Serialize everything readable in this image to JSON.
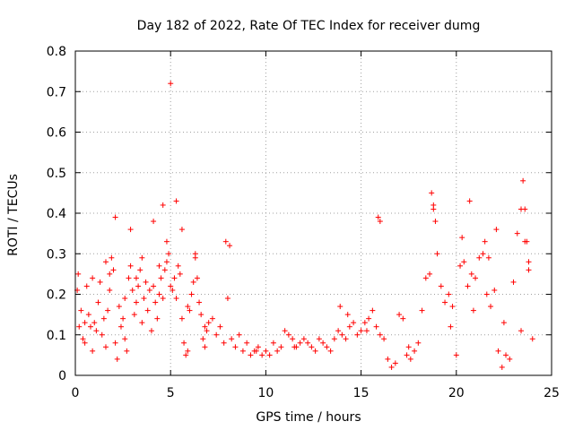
{
  "chart_data": {
    "type": "scatter",
    "title": "Day 182 of 2022, Rate Of TEC Index for receiver dumg",
    "xlabel": "GPS time / hours",
    "ylabel": "ROTI / TECUs",
    "xlim": [
      0,
      25
    ],
    "ylim": [
      0,
      0.8
    ],
    "x_ticks": [
      "0",
      "5",
      "10",
      "15",
      "20",
      "25"
    ],
    "y_ticks": [
      "0",
      "0.1",
      "0.2",
      "0.3",
      "0.4",
      "0.5",
      "0.6",
      "0.7",
      "0.8"
    ],
    "grid": true,
    "marker": "+",
    "color": "#ff0000",
    "series": [
      {
        "x": [
          0.1,
          0.2,
          0.3,
          0.4,
          0.5,
          0.6,
          0.7,
          0.8,
          0.9,
          1.0,
          1.1,
          1.2,
          1.3,
          1.4,
          1.5,
          1.6,
          1.7,
          1.8,
          1.9,
          2.0,
          2.1,
          2.2,
          2.3,
          2.4,
          2.5,
          2.6,
          2.7,
          2.8,
          2.9,
          3.0,
          3.1,
          3.2,
          3.3,
          3.4,
          3.5,
          3.6,
          3.7,
          3.8,
          3.9,
          4.0,
          4.1,
          4.2,
          4.3,
          4.4,
          4.5,
          4.6,
          4.7,
          4.8,
          4.9,
          5.0,
          5.1,
          5.2,
          5.3,
          5.4,
          5.5,
          5.6,
          5.7,
          5.8,
          5.9,
          6.0,
          6.1,
          6.2,
          6.3,
          6.4,
          6.5,
          6.6,
          6.7,
          6.8,
          6.9,
          7.0,
          7.2,
          7.4,
          7.6,
          7.8,
          8.0,
          8.2,
          8.4,
          8.6,
          8.8,
          9.0,
          9.2,
          9.4,
          9.6,
          9.8,
          10.0,
          10.2,
          10.4,
          10.6,
          10.8,
          11.0,
          11.2,
          11.4,
          11.6,
          11.8,
          12.0,
          12.2,
          12.4,
          12.6,
          12.8,
          13.0,
          13.2,
          13.4,
          13.6,
          13.8,
          14.0,
          14.2,
          14.4,
          14.6,
          14.8,
          15.0,
          15.2,
          15.4,
          15.6,
          15.8,
          16.0,
          16.2,
          16.4,
          16.6,
          16.8,
          17.0,
          17.2,
          17.4,
          17.6,
          17.8,
          18.0,
          18.2,
          18.4,
          18.6,
          18.8,
          19.0,
          19.2,
          19.4,
          19.6,
          19.8,
          20.0,
          20.2,
          20.4,
          20.6,
          20.8,
          21.0,
          21.2,
          21.4,
          21.6,
          21.8,
          22.0,
          22.2,
          22.4,
          22.6,
          22.8,
          23.0,
          23.2,
          23.4,
          23.6,
          23.8,
          24.0,
          0.15,
          0.9,
          1.6,
          2.1,
          2.9,
          3.5,
          4.1,
          4.6,
          5.0,
          5.3,
          5.6,
          6.3,
          7.9,
          8.1,
          13.9,
          14.3,
          15.9,
          16.0,
          18.7,
          18.8,
          18.9,
          20.3,
          20.7,
          21.5,
          21.7,
          22.1,
          23.5,
          23.6,
          23.7,
          23.8,
          0.5,
          1.8,
          2.6,
          3.2,
          4.4,
          4.8,
          5.9,
          6.8,
          9.5,
          11.5,
          15.3,
          17.5,
          19.7,
          20.9,
          22.5,
          23.4
        ],
        "y": [
          0.21,
          0.12,
          0.16,
          0.09,
          0.08,
          0.22,
          0.15,
          0.12,
          0.06,
          0.13,
          0.11,
          0.18,
          0.23,
          0.1,
          0.14,
          0.07,
          0.16,
          0.25,
          0.29,
          0.26,
          0.08,
          0.04,
          0.17,
          0.12,
          0.14,
          0.09,
          0.06,
          0.24,
          0.27,
          0.21,
          0.15,
          0.18,
          0.22,
          0.26,
          0.13,
          0.19,
          0.23,
          0.16,
          0.21,
          0.11,
          0.22,
          0.18,
          0.14,
          0.2,
          0.24,
          0.19,
          0.26,
          0.28,
          0.3,
          0.22,
          0.21,
          0.24,
          0.19,
          0.27,
          0.25,
          0.14,
          0.08,
          0.05,
          0.06,
          0.16,
          0.2,
          0.23,
          0.29,
          0.24,
          0.18,
          0.15,
          0.09,
          0.07,
          0.11,
          0.13,
          0.14,
          0.1,
          0.12,
          0.08,
          0.19,
          0.09,
          0.07,
          0.1,
          0.06,
          0.08,
          0.05,
          0.06,
          0.07,
          0.05,
          0.06,
          0.05,
          0.08,
          0.06,
          0.07,
          0.11,
          0.1,
          0.09,
          0.07,
          0.08,
          0.09,
          0.08,
          0.07,
          0.06,
          0.09,
          0.08,
          0.07,
          0.06,
          0.09,
          0.11,
          0.1,
          0.09,
          0.12,
          0.13,
          0.1,
          0.11,
          0.13,
          0.14,
          0.16,
          0.12,
          0.1,
          0.09,
          0.04,
          0.02,
          0.03,
          0.15,
          0.14,
          0.05,
          0.04,
          0.06,
          0.08,
          0.16,
          0.24,
          0.25,
          0.41,
          0.3,
          0.22,
          0.18,
          0.2,
          0.17,
          0.05,
          0.27,
          0.28,
          0.22,
          0.25,
          0.24,
          0.29,
          0.3,
          0.2,
          0.17,
          0.21,
          0.06,
          0.02,
          0.05,
          0.04,
          0.23,
          0.35,
          0.41,
          0.33,
          0.26,
          0.09,
          0.25,
          0.24,
          0.28,
          0.39,
          0.36,
          0.29,
          0.38,
          0.42,
          0.72,
          0.43,
          0.36,
          0.3,
          0.33,
          0.32,
          0.17,
          0.15,
          0.39,
          0.38,
          0.45,
          0.42,
          0.38,
          0.34,
          0.43,
          0.33,
          0.29,
          0.36,
          0.48,
          0.41,
          0.33,
          0.28,
          0.13,
          0.21,
          0.19,
          0.24,
          0.27,
          0.33,
          0.17,
          0.12,
          0.06,
          0.07,
          0.11,
          0.07,
          0.12,
          0.16,
          0.13,
          0.11
        ]
      }
    ]
  }
}
